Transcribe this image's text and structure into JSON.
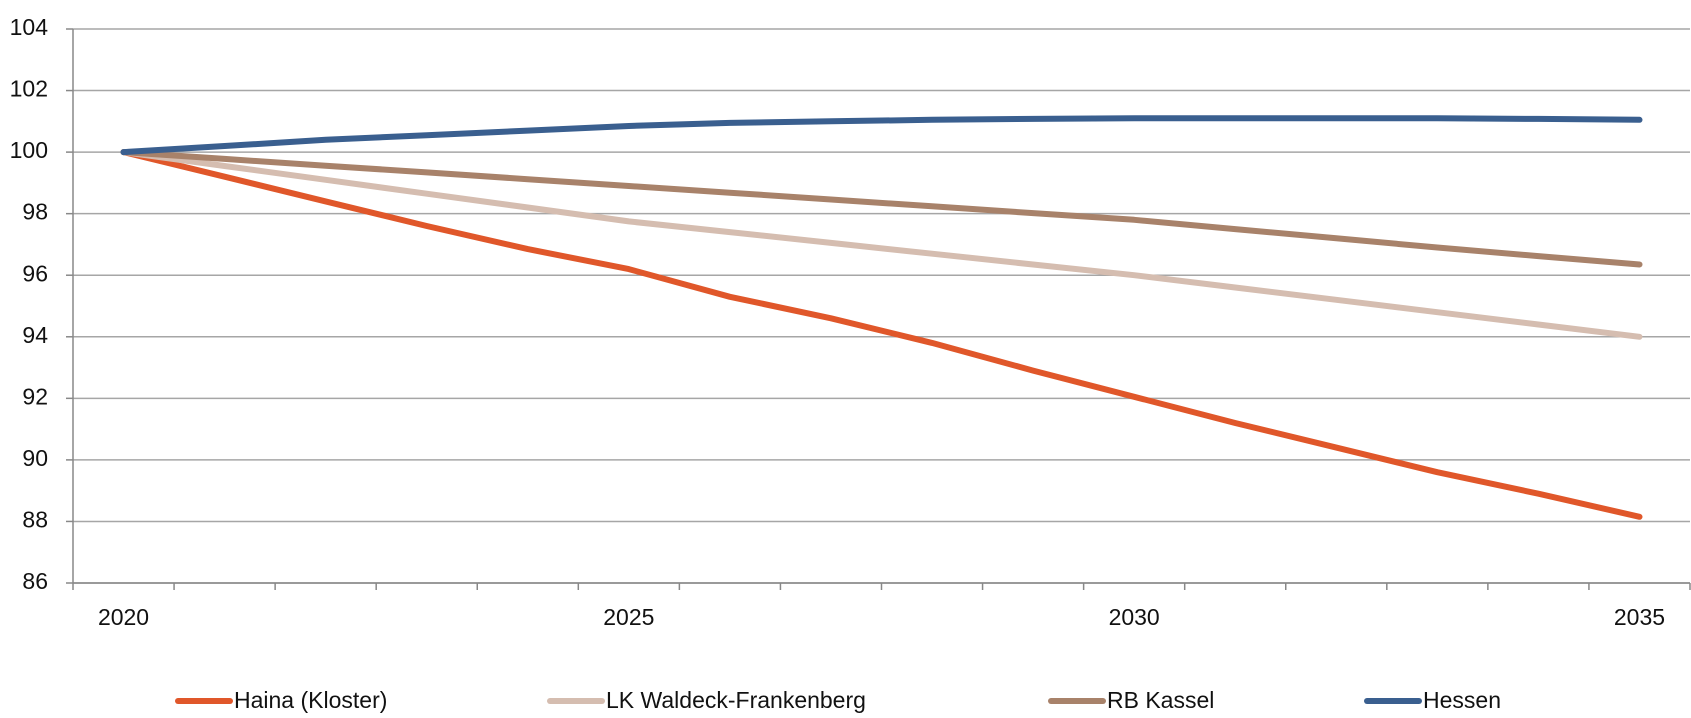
{
  "chart_data": {
    "type": "line",
    "categories": [
      "2020",
      null,
      null,
      null,
      null,
      "2025",
      null,
      null,
      null,
      null,
      "2030",
      null,
      null,
      null,
      null,
      "2035"
    ],
    "series": [
      {
        "name": "Haina (Kloster)",
        "color": "#e0572a",
        "values": [
          100,
          99.2,
          98.4,
          97.6,
          96.85,
          96.2,
          95.3,
          94.6,
          93.8,
          92.9,
          92.05,
          91.2,
          90.4,
          89.6,
          88.9,
          88.15
        ]
      },
      {
        "name": "LK Waldeck-Frankenberg",
        "color": "#d5bdb0",
        "values": [
          100,
          99.55,
          99.1,
          98.65,
          98.2,
          97.75,
          97.4,
          97.05,
          96.7,
          96.35,
          96.0,
          95.6,
          95.2,
          94.8,
          94.4,
          94.0
        ]
      },
      {
        "name": "RB Kassel",
        "color": "#a8826a",
        "values": [
          100,
          99.78,
          99.56,
          99.34,
          99.12,
          98.9,
          98.68,
          98.46,
          98.24,
          98.02,
          97.8,
          97.5,
          97.2,
          96.9,
          96.62,
          96.35
        ]
      },
      {
        "name": "Hessen",
        "color": "#3a5f8f",
        "values": [
          100,
          100.2,
          100.4,
          100.55,
          100.7,
          100.85,
          100.95,
          101.0,
          101.05,
          101.08,
          101.1,
          101.1,
          101.1,
          101.1,
          101.08,
          101.05
        ]
      }
    ],
    "ylim": [
      86,
      104
    ],
    "yticks": [
      86,
      88,
      90,
      92,
      94,
      96,
      98,
      100,
      102,
      104
    ],
    "grid": true,
    "legend": "bottom"
  }
}
